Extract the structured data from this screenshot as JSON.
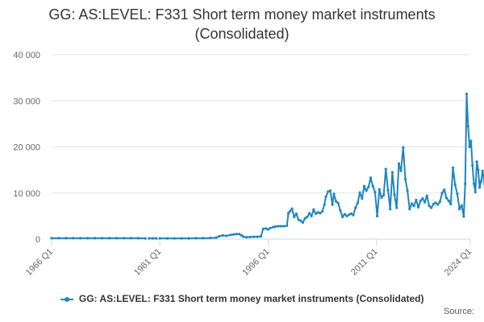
{
  "chart_data": {
    "type": "line",
    "title_lines": [
      "GG: AS:LEVEL: F331 Short term money market instruments",
      "(Consolidated)"
    ],
    "source_label": "Source:",
    "xlabel": "",
    "ylabel": "",
    "ylim": [
      0,
      40000
    ],
    "yticks": [
      0,
      10000,
      20000,
      30000,
      40000
    ],
    "ytick_labels": [
      "0",
      "10 000",
      "20 000",
      "30 000",
      "40 000"
    ],
    "xlim": [
      1966,
      2024
    ],
    "xticks": [
      1966,
      1981,
      1996,
      2011,
      2024
    ],
    "xtick_labels": [
      "1966 Q1",
      "1981 Q1",
      "1996 Q1",
      "2011 Q1",
      "2024 Q1"
    ],
    "grid": "horizontal",
    "legend_position": "bottom",
    "colors": {
      "series": "#1f86c0",
      "grid": "#e6e6e6",
      "axis": "#ccd6eb"
    },
    "series": [
      {
        "name": "GG: AS:LEVEL: F331 Short term money market instruments (Consolidated)",
        "segments": [
          [
            [
              1966.0,
              200
            ],
            [
              1967.0,
              200
            ],
            [
              1968.0,
              200
            ],
            [
              1969.0,
              200
            ],
            [
              1970.0,
              200
            ],
            [
              1971.0,
              200
            ],
            [
              1972.0,
              200
            ],
            [
              1973.0,
              200
            ],
            [
              1974.0,
              200
            ],
            [
              1975.0,
              200
            ],
            [
              1976.0,
              200
            ],
            [
              1977.0,
              200
            ],
            [
              1978.0,
              200
            ],
            [
              1979.0,
              150
            ]
          ],
          [
            [
              1979.5,
              150
            ],
            [
              1980.0,
              150
            ],
            [
              1980.5,
              150
            ]
          ],
          [
            [
              1981.0,
              150
            ],
            [
              1982.0,
              150
            ],
            [
              1983.0,
              150
            ],
            [
              1984.0,
              150
            ],
            [
              1985.0,
              150
            ],
            [
              1986.0,
              200
            ],
            [
              1987.0,
              200
            ],
            [
              1988.0,
              250
            ],
            [
              1988.8,
              300
            ],
            [
              1989.2,
              600
            ],
            [
              1989.7,
              800
            ],
            [
              1990.2,
              700
            ],
            [
              1990.8,
              900
            ],
            [
              1991.2,
              1000
            ],
            [
              1991.6,
              1100
            ],
            [
              1992.0,
              1100
            ],
            [
              1992.3,
              800
            ],
            [
              1992.6,
              500
            ],
            [
              1993.0,
              400
            ],
            [
              1993.5,
              450
            ],
            [
              1994.0,
              500
            ],
            [
              1994.5,
              500
            ],
            [
              1995.0,
              600
            ],
            [
              1995.3,
              2200
            ],
            [
              1995.7,
              2300
            ],
            [
              1996.0,
              2100
            ],
            [
              1996.3,
              2400
            ],
            [
              1996.7,
              2600
            ],
            [
              1997.0,
              2700
            ],
            [
              1997.4,
              2800
            ],
            [
              1997.8,
              2800
            ],
            [
              1998.2,
              2800
            ],
            [
              1998.6,
              2900
            ],
            [
              1998.8,
              5600
            ],
            [
              1999.0,
              6000
            ],
            [
              1999.3,
              6600
            ],
            [
              1999.6,
              4800
            ],
            [
              1999.9,
              5500
            ],
            [
              2000.2,
              4200
            ],
            [
              2000.5,
              4000
            ],
            [
              2000.8,
              3600
            ],
            [
              2001.1,
              4500
            ],
            [
              2001.4,
              4800
            ],
            [
              2001.7,
              5600
            ],
            [
              2002.0,
              5000
            ],
            [
              2002.3,
              6400
            ],
            [
              2002.6,
              5500
            ],
            [
              2002.9,
              5800
            ],
            [
              2003.2,
              5600
            ],
            [
              2003.5,
              6000
            ],
            [
              2003.8,
              7500
            ],
            [
              2004.0,
              9200
            ],
            [
              2004.3,
              10300
            ],
            [
              2004.6,
              10500
            ],
            [
              2004.9,
              7500
            ],
            [
              2005.1,
              9800
            ],
            [
              2005.4,
              8200
            ],
            [
              2005.7,
              7800
            ],
            [
              2006.0,
              6200
            ],
            [
              2006.3,
              4800
            ],
            [
              2006.6,
              5400
            ],
            [
              2006.9,
              5000
            ],
            [
              2007.2,
              5300
            ],
            [
              2007.5,
              5500
            ],
            [
              2007.8,
              5200
            ],
            [
              2008.1,
              6800
            ],
            [
              2008.4,
              7800
            ],
            [
              2008.7,
              10100
            ],
            [
              2009.0,
              8800
            ],
            [
              2009.3,
              11500
            ],
            [
              2009.6,
              10500
            ],
            [
              2009.9,
              11300
            ],
            [
              2010.2,
              13300
            ],
            [
              2010.5,
              11500
            ],
            [
              2010.8,
              10200
            ],
            [
              2011.1,
              5000
            ],
            [
              2011.4,
              10800
            ],
            [
              2011.7,
              9000
            ],
            [
              2012.0,
              9500
            ],
            [
              2012.3,
              15200
            ],
            [
              2012.6,
              10600
            ],
            [
              2012.9,
              6500
            ],
            [
              2013.2,
              14500
            ],
            [
              2013.5,
              9600
            ],
            [
              2013.8,
              6800
            ],
            [
              2014.1,
              16400
            ],
            [
              2014.4,
              14800
            ],
            [
              2014.7,
              19900
            ],
            [
              2015.0,
              13000
            ],
            [
              2015.3,
              10500
            ],
            [
              2015.6,
              6500
            ],
            [
              2015.9,
              7700
            ],
            [
              2016.2,
              7200
            ],
            [
              2016.5,
              8500
            ],
            [
              2016.8,
              6900
            ],
            [
              2017.1,
              8300
            ],
            [
              2017.4,
              8800
            ],
            [
              2017.7,
              8000
            ],
            [
              2018.0,
              9400
            ],
            [
              2018.3,
              7200
            ],
            [
              2018.6,
              6800
            ],
            [
              2018.9,
              7600
            ],
            [
              2019.2,
              7900
            ],
            [
              2019.5,
              7500
            ],
            [
              2019.8,
              8100
            ],
            [
              2020.1,
              10000
            ],
            [
              2020.4,
              10700
            ],
            [
              2020.7,
              8900
            ],
            [
              2021.0,
              8300
            ],
            [
              2021.3,
              7600
            ],
            [
              2021.6,
              15500
            ],
            [
              2021.9,
              11800
            ],
            [
              2022.2,
              9800
            ],
            [
              2022.5,
              6500
            ],
            [
              2022.8,
              7300
            ],
            [
              2023.1,
              4900
            ],
            [
              2023.3,
              12000
            ],
            [
              2023.5,
              31500
            ],
            [
              2023.7,
              24500
            ],
            [
              2023.9,
              20000
            ],
            [
              2024.1,
              21300
            ],
            [
              2024.3,
              16000
            ],
            [
              2024.5,
              12000
            ],
            [
              2024.7,
              10200
            ],
            [
              2024.9,
              16800
            ],
            [
              2025.1,
              15000
            ],
            [
              2025.3,
              11200
            ],
            [
              2025.5,
              12500
            ],
            [
              2025.7,
              14800
            ],
            [
              2025.9,
              13000
            ],
            [
              2026.1,
              9200
            ],
            [
              2026.3,
              16700
            ],
            [
              2026.6,
              12300
            ]
          ]
        ]
      }
    ]
  }
}
